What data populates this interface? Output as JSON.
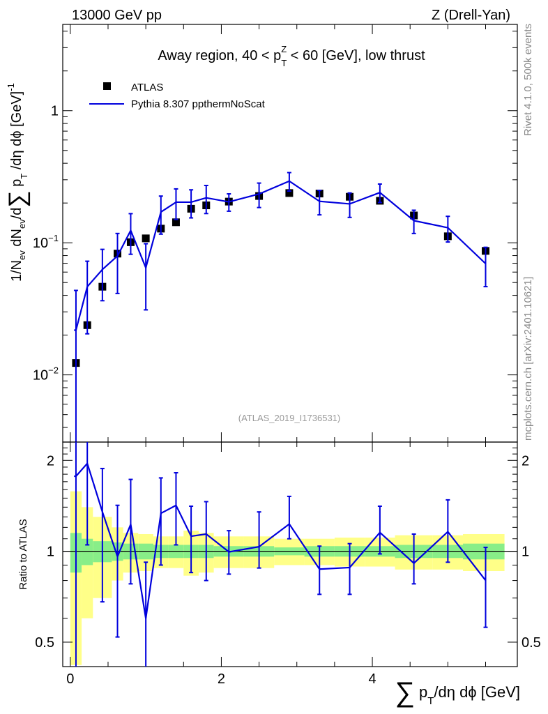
{
  "header": {
    "left": "13000 GeV pp",
    "right": "Z (Drell-Yan)"
  },
  "side_labels": {
    "rivet": "Rivet 4.1.0,  500k events",
    "mcplots": "mcplots.cern.ch [arXiv:2401.10621]"
  },
  "chart_data": {
    "type": "scatter",
    "title": "Away region, 40 < p_T^Z < 60 [GeV], low thrust",
    "title_parts": {
      "pre": "Away region, 40 < p",
      "sub": "T",
      "sup": "Z",
      "post": " < 60 [GeV], low thrust"
    },
    "analysis_id": "(ATLAS_2019_I1736531)",
    "xlabel": "∑ p_T/dη dϕ [GeV]",
    "xlabel_parts": {
      "sum": "∑",
      "p": "p",
      "sub": "T",
      "rest": "/dη dϕ [GeV]"
    },
    "ylabel_main": "1/N_ev dN_ev/d∑ p_T/dη dϕ [GeV]^-1",
    "ylabel_main_parts": {
      "a": "1/N",
      "ev1": "ev",
      "b": " dN",
      "ev2": "ev",
      "c": "/d",
      "sum": "∑",
      "p": " p",
      "sub": "T",
      "d": " /dη dϕ  [GeV]",
      "sup": "-1"
    },
    "ylabel_ratio": "Ratio to ATLAS",
    "xlim": [
      -0.1,
      5.92
    ],
    "ylim_main": [
      0.0031,
      4.5
    ],
    "ylim_ratio": [
      0.415,
      2.3
    ],
    "x_ticks": [
      "0",
      "2",
      "4"
    ],
    "y_ticks_main": [
      {
        "v": 1,
        "base": "1",
        "exp": ""
      },
      {
        "v": 0.1,
        "base": "10",
        "exp": "−1"
      },
      {
        "v": 0.01,
        "base": "10",
        "exp": "−2"
      }
    ],
    "y_ticks_ratio": [
      "0.5",
      "1",
      "2"
    ],
    "legend": [
      {
        "label": "ATLAS",
        "style": "square",
        "color": "#000000"
      },
      {
        "label": "Pythia 8.307 ppthermNoScat",
        "style": "line",
        "color": "#0000dd"
      }
    ],
    "edges": [
      0,
      0.15,
      0.3,
      0.55,
      0.7,
      0.9,
      1.1,
      1.3,
      1.5,
      1.7,
      1.9,
      2.3,
      2.7,
      3.1,
      3.5,
      3.9,
      4.3,
      4.8,
      5.2,
      5.75
    ],
    "data": {
      "name": "ATLAS",
      "x": [
        0.075,
        0.225,
        0.425,
        0.625,
        0.8,
        1.0,
        1.2,
        1.4,
        1.6,
        1.8,
        2.1,
        2.5,
        2.9,
        3.3,
        3.7,
        4.1,
        4.55,
        5.0,
        5.5
      ],
      "y": [
        0.0123,
        0.0238,
        0.0465,
        0.0828,
        0.101,
        0.108,
        0.128,
        0.143,
        0.181,
        0.192,
        0.205,
        0.226,
        0.238,
        0.236,
        0.223,
        0.208,
        0.161,
        0.112,
        0.0868
      ],
      "stat_rel": [
        0.15,
        0.1,
        0.08,
        0.07,
        0.06,
        0.06,
        0.05,
        0.05,
        0.05,
        0.05,
        0.04,
        0.04,
        0.03,
        0.04,
        0.04,
        0.04,
        0.05,
        0.05,
        0.06
      ],
      "tot_rel": [
        0.58,
        0.4,
        0.3,
        0.2,
        0.15,
        0.14,
        0.12,
        0.12,
        0.17,
        0.15,
        0.12,
        0.12,
        0.1,
        0.1,
        0.11,
        0.11,
        0.13,
        0.13,
        0.14
      ]
    },
    "mc": {
      "name": "Pythia 8.307 ppthermNoScat",
      "y": [
        0.0218,
        0.0465,
        0.0628,
        0.0795,
        0.124,
        0.0647,
        0.171,
        0.203,
        0.203,
        0.219,
        0.204,
        0.234,
        0.293,
        0.206,
        0.197,
        0.24,
        0.147,
        0.13,
        0.0695
      ],
      "err_rel": [
        1.0,
        0.56,
        0.42,
        0.48,
        0.34,
        0.52,
        0.32,
        0.26,
        0.24,
        0.24,
        0.15,
        0.21,
        0.16,
        0.21,
        0.21,
        0.16,
        0.2,
        0.22,
        0.33
      ],
      "ratio_lo_override": [
        0.4,
        1.05,
        0.68,
        0.52,
        0.78,
        0.41,
        0.9,
        1.05,
        0.85,
        0.8,
        0.84,
        0.88,
        1.1,
        0.72,
        0.72,
        0.98,
        0.78,
        0.92,
        0.56
      ],
      "ratio_hi_override": [
        2.3,
        2.3,
        1.88,
        1.42,
        1.73,
        0.92,
        1.75,
        1.82,
        1.41,
        1.46,
        1.17,
        1.35,
        1.52,
        1.04,
        1.06,
        1.41,
        1.14,
        1.48,
        1.03
      ]
    }
  }
}
